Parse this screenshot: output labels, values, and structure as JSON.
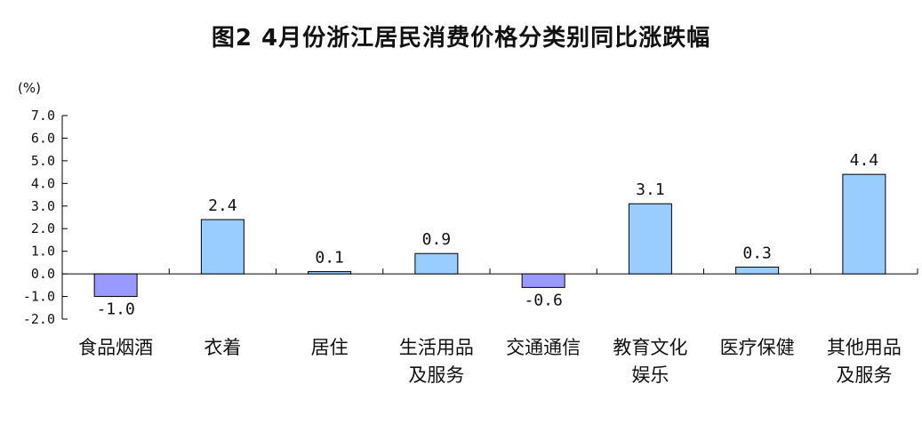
{
  "chart_data": {
    "type": "bar",
    "title": "图2 4月份浙江居民消费价格分类别同比涨跌幅",
    "ylabel": "(%)",
    "ylim": [
      -2.0,
      7.0
    ],
    "yticks": [
      "7.0",
      "6.0",
      "5.0",
      "4.0",
      "3.0",
      "2.0",
      "1.0",
      "0.0",
      "-1.0",
      "-2.0"
    ],
    "categories": [
      [
        "食品烟酒"
      ],
      [
        "衣着"
      ],
      [
        "居住"
      ],
      [
        "生活用品",
        "及服务"
      ],
      [
        "交通通信"
      ],
      [
        "教育文化",
        "娱乐"
      ],
      [
        "医疗保健"
      ],
      [
        "其他用品",
        "及服务"
      ]
    ],
    "values": [
      -1.0,
      2.4,
      0.1,
      0.9,
      -0.6,
      3.1,
      0.3,
      4.4
    ],
    "value_labels": [
      "-1.0",
      "2.4",
      "0.1",
      "0.9",
      "-0.6",
      "3.1",
      "0.3",
      "4.4"
    ],
    "colors": {
      "positive": "#99ccff",
      "negative": "#9999ff",
      "stroke": "#000000"
    },
    "grid": false,
    "legend": "none"
  }
}
